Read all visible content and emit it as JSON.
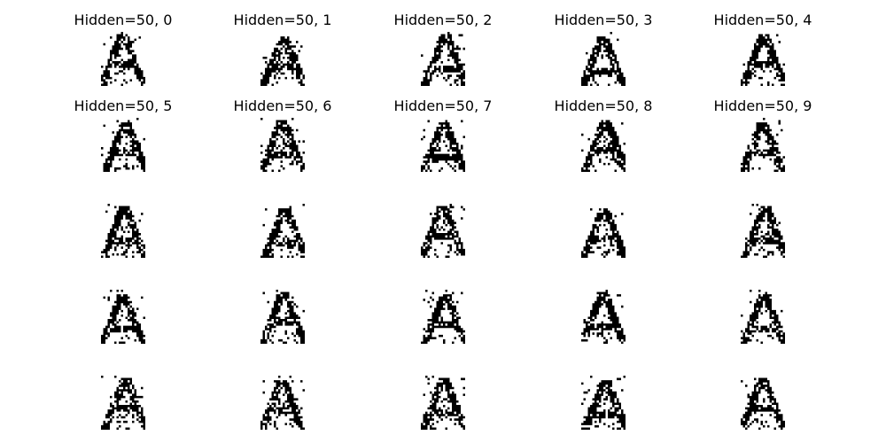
{
  "colors": {
    "ink": "#000000",
    "paper": "#ffffff"
  },
  "grid": {
    "rows": 5,
    "cols": 5
  },
  "panels": [
    {
      "title": "Hidden=50, 0"
    },
    {
      "title": "Hidden=50, 1"
    },
    {
      "title": "Hidden=50, 2"
    },
    {
      "title": "Hidden=50, 3"
    },
    {
      "title": "Hidden=50, 4"
    },
    {
      "title": "Hidden=50, 5"
    },
    {
      "title": "Hidden=50, 6"
    },
    {
      "title": "Hidden=50, 7"
    },
    {
      "title": "Hidden=50, 8"
    },
    {
      "title": "Hidden=50, 9"
    },
    {
      "title": ""
    },
    {
      "title": ""
    },
    {
      "title": ""
    },
    {
      "title": ""
    },
    {
      "title": ""
    },
    {
      "title": ""
    },
    {
      "title": ""
    },
    {
      "title": ""
    },
    {
      "title": ""
    },
    {
      "title": ""
    },
    {
      "title": ""
    },
    {
      "title": ""
    },
    {
      "title": ""
    },
    {
      "title": ""
    },
    {
      "title": ""
    }
  ]
}
